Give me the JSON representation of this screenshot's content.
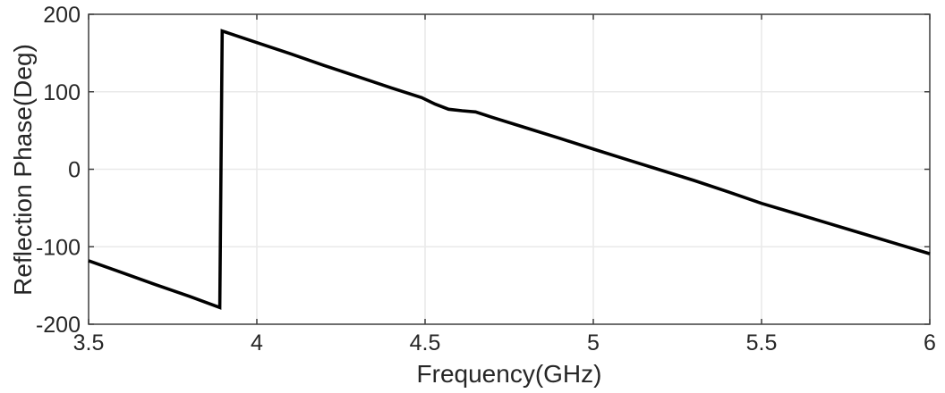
{
  "chart_data": {
    "type": "line",
    "title": "",
    "xlabel": "Frequency(GHz)",
    "ylabel": "Reflection Phase(Deg)",
    "xlim": [
      3.5,
      6
    ],
    "ylim": [
      -200,
      200
    ],
    "xticks": [
      3.5,
      4,
      4.5,
      5,
      5.5,
      6
    ],
    "xtick_labels": [
      "3.5",
      "4",
      "4.5",
      "5",
      "5.5",
      "6"
    ],
    "yticks": [
      -200,
      -100,
      0,
      100,
      200
    ],
    "ytick_labels": [
      "-200",
      "-100",
      "0",
      "100",
      "200"
    ],
    "grid": true,
    "legend": false,
    "colors": {
      "line": "#000000",
      "grid": "#e9e9e9",
      "axis_box": "#3f3f3f",
      "text": "#262626",
      "background": "#ffffff"
    },
    "series": [
      {
        "name": "reflection-phase",
        "points": [
          [
            3.5,
            -118
          ],
          [
            3.6,
            -133.5
          ],
          [
            3.7,
            -149
          ],
          [
            3.8,
            -164
          ],
          [
            3.89,
            -178.5
          ],
          [
            3.897,
            178.5
          ],
          [
            4.0,
            163.5
          ],
          [
            4.1,
            149
          ],
          [
            4.2,
            134
          ],
          [
            4.3,
            119.5
          ],
          [
            4.4,
            105
          ],
          [
            4.49,
            92.5
          ],
          [
            4.53,
            84
          ],
          [
            4.57,
            77.5
          ],
          [
            4.61,
            75.5
          ],
          [
            4.65,
            74
          ],
          [
            4.7,
            67
          ],
          [
            4.8,
            53.5
          ],
          [
            4.9,
            40
          ],
          [
            5.0,
            26
          ],
          [
            5.1,
            12.5
          ],
          [
            5.2,
            -1
          ],
          [
            5.3,
            -14.5
          ],
          [
            5.4,
            -29
          ],
          [
            5.5,
            -44
          ],
          [
            5.6,
            -57
          ],
          [
            5.7,
            -70
          ],
          [
            5.8,
            -83
          ],
          [
            5.9,
            -96
          ],
          [
            6.0,
            -109
          ]
        ]
      }
    ],
    "annotations": {
      "phase_jump_ghz": 3.9,
      "kink_ghz": 4.6
    }
  }
}
